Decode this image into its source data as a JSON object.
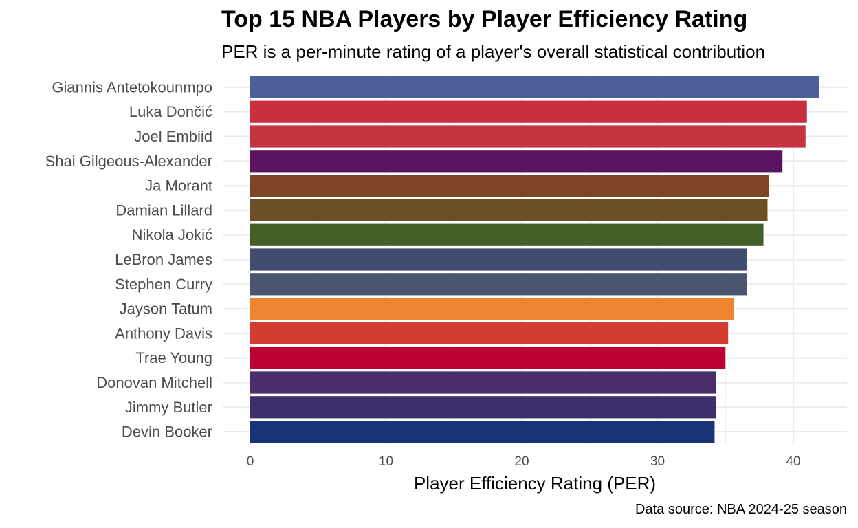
{
  "chart_data": {
    "type": "bar",
    "orientation": "horizontal",
    "title": "Top 15 NBA Players by Player Efficiency Rating",
    "subtitle": "PER is a per-minute rating of a player's overall statistical contribution",
    "xlabel": "Player Efficiency Rating (PER)",
    "ylabel": "",
    "caption": "Data source: NBA 2024-25 season",
    "xlim": [
      0,
      44
    ],
    "xticks": [
      0,
      10,
      20,
      30,
      40
    ],
    "grid": true,
    "legend": "none",
    "categories": [
      "Giannis Antetokounmpo",
      "Luka Dončić",
      "Joel Embiid",
      "Shai Gilgeous-Alexander",
      "Ja Morant",
      "Damian Lillard",
      "Nikola Jokić",
      "LeBron James",
      "Stephen Curry",
      "Jayson Tatum",
      "Anthony Davis",
      "Trae Young",
      "Donovan Mitchell",
      "Jimmy Butler",
      "Devin Booker"
    ],
    "values": [
      41.9,
      41.0,
      40.9,
      39.2,
      38.2,
      38.1,
      37.8,
      36.6,
      36.6,
      35.6,
      35.2,
      35.0,
      34.3,
      34.3,
      34.2
    ],
    "colors": [
      "#4b6098",
      "#c8303e",
      "#c53441",
      "#5a1460",
      "#7f4428",
      "#6a5025",
      "#435f27",
      "#404d6e",
      "#4b5570",
      "#ed8430",
      "#d43c31",
      "#bd0131",
      "#4a2e6c",
      "#3e2f6c",
      "#1a3278"
    ]
  }
}
